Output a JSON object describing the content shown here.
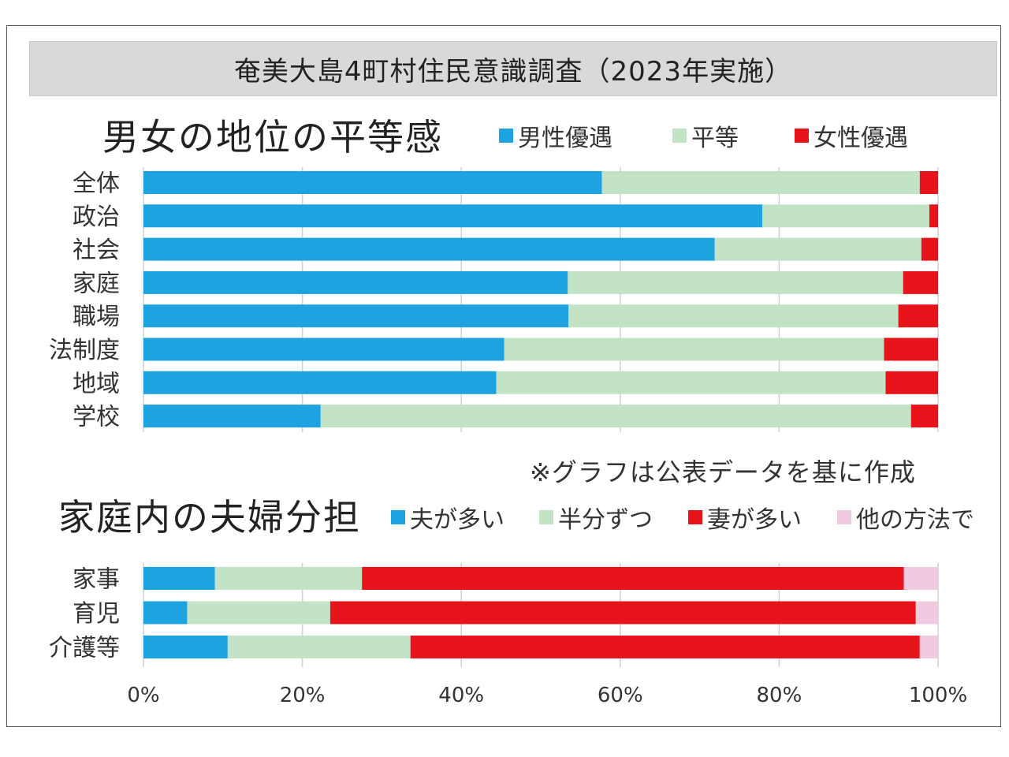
{
  "banner_title": "奄美大島4町村住民意識調査（2023年実施）",
  "note": "※グラフは公表データを基に作成",
  "colors": {
    "blue": "#1fa3e0",
    "light_green": "#c3e3c6",
    "red": "#e8141b",
    "pink": "#f0cbe0",
    "grid": "#d0d0d0"
  },
  "chart_data": [
    {
      "type": "bar",
      "orientation": "horizontal",
      "stacked": true,
      "title": "男女の地位の平等感",
      "categories": [
        "全体",
        "政治",
        "社会",
        "家庭",
        "職場",
        "法制度",
        "地域",
        "学校"
      ],
      "series": [
        {
          "name": "男性優遇",
          "color": "#1fa3e0",
          "values": [
            57.7,
            77.9,
            71.9,
            53.4,
            53.5,
            45.4,
            44.4,
            22.3
          ]
        },
        {
          "name": "平等",
          "color": "#c3e3c6",
          "values": [
            40.0,
            21.0,
            26.0,
            42.2,
            41.5,
            47.8,
            49.0,
            74.3
          ]
        },
        {
          "name": "女性優遇",
          "color": "#e8141b",
          "values": [
            2.3,
            1.1,
            2.1,
            4.4,
            5.0,
            6.8,
            6.6,
            3.4
          ]
        }
      ],
      "xlim": [
        0,
        100
      ],
      "grid": true,
      "legend": "top"
    },
    {
      "type": "bar",
      "orientation": "horizontal",
      "stacked": true,
      "title": "家庭内の夫婦分担",
      "categories": [
        "家事",
        "育児",
        "介護等"
      ],
      "series": [
        {
          "name": "夫が多い",
          "color": "#1fa3e0",
          "values": [
            9.0,
            5.5,
            10.6
          ]
        },
        {
          "name": "半分ずつ",
          "color": "#c3e3c6",
          "values": [
            18.5,
            18.0,
            23.0
          ]
        },
        {
          "name": "妻が多い",
          "color": "#e8141b",
          "values": [
            68.2,
            73.7,
            64.1
          ]
        },
        {
          "name": "他の方法で",
          "color": "#f0cbe0",
          "values": [
            4.3,
            2.8,
            2.3
          ]
        }
      ],
      "xlim": [
        0,
        100
      ],
      "xticks": [
        "0%",
        "20%",
        "40%",
        "60%",
        "80%",
        "100%"
      ],
      "grid": true,
      "legend": "top"
    }
  ]
}
